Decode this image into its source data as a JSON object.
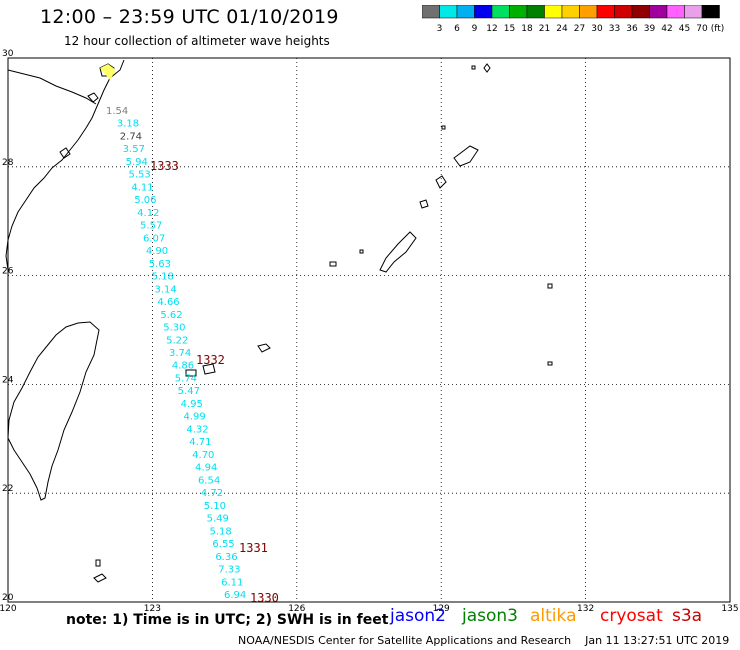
{
  "title": "12:00 – 23:59 UTC 01/10/2019",
  "subtitle": "12 hour collection of altimeter wave heights",
  "colorbar": {
    "colors": [
      "#707070",
      "#00e8e8",
      "#00b0f0",
      "#0000f0",
      "#00e060",
      "#00b000",
      "#008000",
      "#ffff00",
      "#ffd000",
      "#ffa000",
      "#ff0000",
      "#d00000",
      "#900000",
      "#a000a0",
      "#ff60ff",
      "#e8a0e8",
      "#000000"
    ],
    "labels": [
      "3",
      "6",
      "9",
      "12",
      "15",
      "18",
      "21",
      "24",
      "27",
      "30",
      "33",
      "36",
      "39",
      "42",
      "45",
      "70"
    ],
    "unit": "(ft)"
  },
  "map": {
    "lon_min": 120,
    "lon_max": 135,
    "lat_min": 20,
    "lat_max": 30,
    "lon_ticks": [
      "120",
      "123",
      "126",
      "129",
      "132",
      "135"
    ],
    "lat_ticks": [
      "20",
      "22",
      "24",
      "26",
      "28",
      "30"
    ],
    "features": [
      "coastline-taiwan",
      "coastline-china",
      "islands-ryukyu"
    ]
  },
  "swh_track": {
    "color": "#00e0f0",
    "values": [
      "1.54",
      "3.18",
      "2.74",
      "3.57",
      "5.94",
      "5.53",
      "4.11",
      "5.06",
      "4.12",
      "5.57",
      "6.07",
      "4.90",
      "5.63",
      "5.18",
      "3.14",
      "4.66",
      "5.62",
      "5.30",
      "5.22",
      "3.74",
      "4.86",
      "5.74",
      "5.47",
      "4.95",
      "4.99",
      "4.32",
      "4.71",
      "4.70",
      "4.94",
      "6.54",
      "4.72",
      "5.10",
      "5.49",
      "5.18",
      "6.55",
      "6.36",
      "7.33",
      "6.11",
      "6.94"
    ]
  },
  "time_labels": {
    "color": "#800000",
    "values": [
      "1333",
      "1332",
      "1331",
      "1330"
    ]
  },
  "note": "note: 1) Time is in UTC; 2) SWH is in feet",
  "satellites": [
    {
      "name": "jason2",
      "color": "#0000ff"
    },
    {
      "name": "jason3",
      "color": "#008000"
    },
    {
      "name": "altika",
      "color": "#ff9900"
    },
    {
      "name": "cryosat",
      "color": "#ff0000"
    },
    {
      "name": "s3a",
      "color": "#cc0000"
    }
  ],
  "credits": "NOAA/NESDIS Center for Satellite Applications and Research",
  "timestamp": "Jan 11 13:27:51 UTC 2019"
}
